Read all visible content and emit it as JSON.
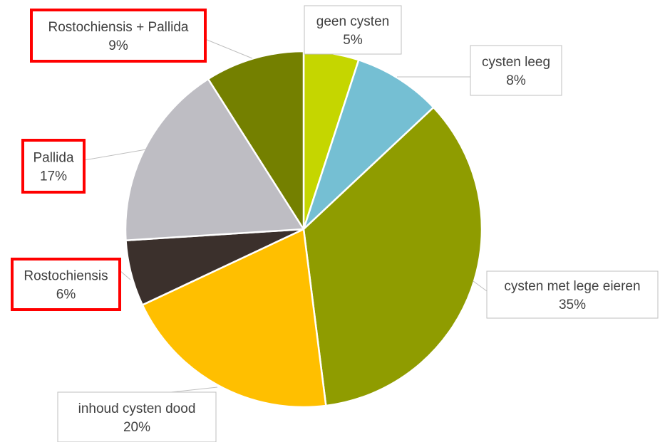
{
  "chart_data": {
    "type": "pie",
    "title": "",
    "slices": [
      {
        "label": "geen cysten",
        "pct_label": "5%",
        "value": 5,
        "color": "#c5d600",
        "highlighted": false
      },
      {
        "label": "cysten leeg",
        "pct_label": "8%",
        "value": 8,
        "color": "#75bfd3",
        "highlighted": false
      },
      {
        "label": "cysten met lege eieren",
        "pct_label": "35%",
        "value": 35,
        "color": "#8f9c00",
        "highlighted": false
      },
      {
        "label": "inhoud cysten dood",
        "pct_label": "20%",
        "value": 20,
        "color": "#ffbf00",
        "highlighted": false
      },
      {
        "label": "Rostochiensis",
        "pct_label": "6%",
        "value": 6,
        "color": "#3b302c",
        "highlighted": true
      },
      {
        "label": "Pallida",
        "pct_label": "17%",
        "value": 17,
        "color": "#bebdc3",
        "highlighted": true
      },
      {
        "label": "Rostochiensis + Pallida",
        "pct_label": "9%",
        "value": 9,
        "color": "#748000",
        "highlighted": true
      }
    ],
    "start_angle_deg": 0,
    "direction": "clockwise",
    "highlight_color": "#ff0000",
    "leader_line_color": "#bfbfbf",
    "label_box_border_color": "#bfbfbf"
  }
}
